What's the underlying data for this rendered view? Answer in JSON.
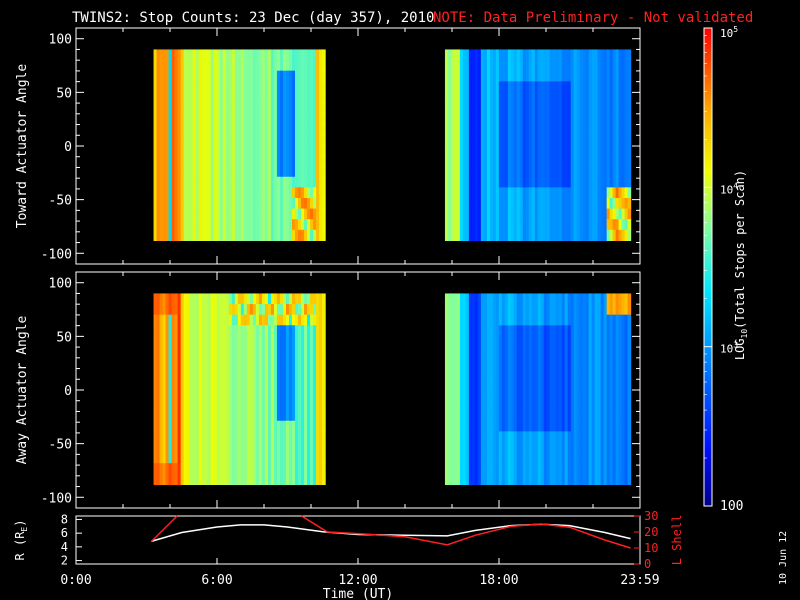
{
  "title": {
    "main": "TWINS2: Stop Counts: 23 Dec (day 357), 2010",
    "note": "NOTE: Data Preliminary - Not validated"
  },
  "colorbar": {
    "label": "LOG10(Total Stops per Scan)",
    "label_base": "LOG",
    "label_sub": "10",
    "label_rest": "(Total Stops per Scan)",
    "ticks": [
      "10^5",
      "10^4",
      "10^3",
      "100"
    ],
    "tick_base": "10",
    "tick_exps": [
      "5",
      "4",
      "3"
    ],
    "tick_last": "100",
    "range_log": [
      2,
      5
    ]
  },
  "stamp": "10 Jun 12",
  "chart_data": [
    {
      "type": "heatmap",
      "ylabel": "Toward Actuator Angle",
      "yticks": [
        "100",
        "50",
        "0",
        "-50",
        "-100"
      ],
      "ylim": [
        -110,
        110
      ],
      "x_range_hours": [
        0,
        24
      ],
      "data_intervals_hours": [
        [
          3.3,
          10.6
        ],
        [
          15.7,
          23.6
        ]
      ],
      "y_range_deg": [
        -88,
        90
      ]
    },
    {
      "type": "heatmap",
      "ylabel": "Away Actuator Angle",
      "yticks": [
        "100",
        "50",
        "0",
        "-50",
        "-100"
      ],
      "ylim": [
        -110,
        110
      ],
      "x_range_hours": [
        0,
        24
      ],
      "data_intervals_hours": [
        [
          3.3,
          10.6
        ],
        [
          15.7,
          23.6
        ]
      ],
      "y_range_deg": [
        -88,
        90
      ]
    },
    {
      "type": "line",
      "ylabel": "R (RE)",
      "ylabel_base": "R (R",
      "ylabel_sub": "E",
      "ylabel_end": ")",
      "yticks_left": [
        "8",
        "6",
        "4",
        "2"
      ],
      "ylim_left": [
        1.5,
        8.5
      ],
      "ylabel_right": "L Shell",
      "yticks_right": [
        "30",
        "20",
        "10",
        "0"
      ],
      "ylim_right": [
        0,
        30
      ],
      "xlabel": "Time (UT)",
      "xticks": [
        "0:00",
        "6:00",
        "12:00",
        "18:00",
        "23:59"
      ],
      "xtick_hours": [
        0,
        6,
        12,
        18,
        24
      ],
      "series": [
        {
          "name": "R",
          "color": "#ffffff",
          "axis": "left",
          "x": [
            3.2,
            4.5,
            6.0,
            7.0,
            8.0,
            9.0,
            10.5,
            12.0,
            14.0,
            15.8,
            17.0,
            18.5,
            19.8,
            21.0,
            22.5,
            23.6
          ],
          "y": [
            4.8,
            6.1,
            6.9,
            7.2,
            7.2,
            6.9,
            6.2,
            5.8,
            5.7,
            5.6,
            6.4,
            7.1,
            7.3,
            7.1,
            6.1,
            5.2
          ]
        },
        {
          "name": "L Shell",
          "color": "#ff2020",
          "axis": "right",
          "x": [
            3.2,
            4.3,
            null,
            9.6,
            10.7,
            12.0,
            14.0,
            15.8,
            17.0,
            18.5,
            19.8,
            21.0,
            22.5,
            23.6
          ],
          "y": [
            14,
            30,
            null,
            30,
            20,
            19,
            17,
            12,
            18,
            23.5,
            25,
            23,
            15,
            10
          ]
        }
      ]
    }
  ]
}
